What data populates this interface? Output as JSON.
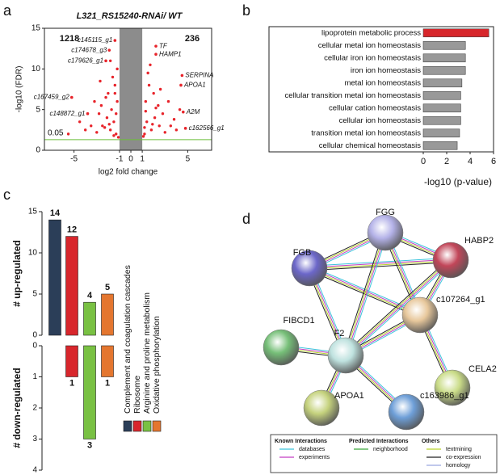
{
  "panel_labels": [
    "a",
    "b",
    "c",
    "d"
  ],
  "chart_data": [
    {
      "type": "volcano",
      "title": "L321_RS15240-RNAi/ WT",
      "xlabel": "log2 fold change",
      "ylabel": "-log10 (FDR)",
      "xlim": [
        -7.6,
        7.1
      ],
      "ylim": [
        0,
        15
      ],
      "xticks": [
        -5,
        -1,
        0,
        1,
        5
      ],
      "yticks": [
        0,
        5,
        10,
        15
      ],
      "band": [
        -1,
        1
      ],
      "threshold": {
        "value": 1.3,
        "label": "0.05"
      },
      "down_count": 1218,
      "up_count": 236,
      "color": "#e8232a",
      "x": [
        -1.3,
        -1.5,
        -1.8,
        -2.1,
        -1.2,
        -2.5,
        -3,
        -1.4,
        -1.7,
        -2.2,
        -2.8,
        -3.5,
        -1.1,
        -1.6,
        -2,
        -4,
        -1.3,
        -2.6,
        -1.9,
        -1.2,
        -3.2,
        -4.5,
        -1.5,
        -2.3,
        -1.8,
        -5.5,
        -1.4,
        -2.7,
        1.2,
        1.4,
        1.8,
        2.1,
        1.3,
        2.5,
        3,
        1.6,
        2.2,
        1.1,
        2.8,
        3.5,
        1.5,
        2,
        4,
        1.3,
        2.4,
        1.9,
        3.3,
        1.7,
        4.3,
        2.6,
        1.2,
        3.8
      ],
      "values": [
        2,
        3.5,
        2.5,
        4,
        6,
        3,
        2.2,
        8,
        5,
        6.5,
        4.5,
        3,
        1.6,
        9,
        7,
        2.5,
        4.5,
        5.5,
        3.2,
        10,
        6,
        3.5,
        1.8,
        2.8,
        11,
        2,
        7,
        8.5,
        2,
        3.5,
        2.5,
        4,
        6,
        3,
        2.2,
        8,
        5.2,
        1.7,
        4.5,
        3,
        9.5,
        7,
        2.5,
        4.8,
        5.5,
        3.2,
        6,
        10.5,
        5,
        7.5,
        2.8,
        3.8
      ],
      "annotations": [
        {
          "text": "c145115_g1",
          "x": -1.4,
          "y": 13.5
        },
        {
          "text": "c174678_g3",
          "x": -1.9,
          "y": 12.3
        },
        {
          "text": "c179626_g1",
          "x": -2.2,
          "y": 11
        },
        {
          "text": "c167459_g2",
          "x": -5.2,
          "y": 6.5
        },
        {
          "text": "c148872_g1",
          "x": -3.8,
          "y": 4.5
        },
        {
          "text": "TF",
          "x": 2.2,
          "y": 12.8
        },
        {
          "text": "HAMP1",
          "x": 2.2,
          "y": 11.8
        },
        {
          "text": "SERPINA",
          "x": 4.5,
          "y": 9.2
        },
        {
          "text": "APOA1",
          "x": 4.4,
          "y": 8
        },
        {
          "text": "A2M",
          "x": 4.6,
          "y": 4.7
        },
        {
          "text": "c162566_g1",
          "x": 4.8,
          "y": 2.7
        }
      ]
    },
    {
      "type": "hbar",
      "xlabel": "-log10 (p-value)",
      "xlim": [
        0,
        6
      ],
      "xticks": [
        0,
        2,
        4,
        6
      ],
      "categories": [
        "lipoprotein metabolic process",
        "cellular metal ion homeostasis",
        "cellular iron ion homeostasis",
        "iron ion homeostasis",
        "metal ion homeostasis",
        "cellular transition metal ion homeostasis",
        "cellular cation homeostasis",
        "cellular ion homeostasis",
        "transition metal ion homeostasis",
        "cellular chemical homeostasis"
      ],
      "values": [
        5.6,
        3.6,
        3.6,
        3.6,
        3.3,
        3.2,
        3.2,
        3.2,
        3.1,
        2.9
      ],
      "colors": [
        "#d7262b",
        "#999999",
        "#999999",
        "#999999",
        "#999999",
        "#999999",
        "#999999",
        "#999999",
        "#999999",
        "#999999"
      ]
    },
    {
      "type": "diverging_bar",
      "categories": [
        "Complement and coagulation cascades",
        "Ribosome",
        "Arginine and proline metabolism",
        "Oxidative phosphorylation"
      ],
      "colors": [
        "#2b3e58",
        "#d8262c",
        "#79c143",
        "#e4762f"
      ],
      "up": {
        "ylabel": "# up-regulated",
        "values": [
          14,
          12,
          4,
          5
        ],
        "ylim": [
          0,
          15
        ],
        "yticks": [
          0,
          5,
          10,
          15
        ]
      },
      "down": {
        "ylabel": "# down-regulated",
        "values": [
          0,
          1,
          3,
          1
        ],
        "ylim": [
          0,
          4
        ],
        "yticks": [
          0,
          1,
          2,
          3,
          4
        ]
      }
    }
  ],
  "network": {
    "nodes": [
      {
        "label": "FGG",
        "color": "#b4b2e8"
      },
      {
        "label": "FGB",
        "color": "#6c67c9"
      },
      {
        "label": "HABP2",
        "color": "#c24659"
      },
      {
        "label": "c107264_g1",
        "color": "#e8c89c"
      },
      {
        "label": "FIBCD1",
        "color": "#76bf78"
      },
      {
        "label": "F2",
        "color": "#bfe2df"
      },
      {
        "label": "CELA2",
        "color": "#cadc88"
      },
      {
        "label": "APOA1",
        "color": "#c5d27d"
      },
      {
        "label": "c163986_g1",
        "color": "#6e9fd8"
      }
    ],
    "edges": [
      [
        0,
        1
      ],
      [
        0,
        2
      ],
      [
        1,
        2
      ],
      [
        0,
        3
      ],
      [
        1,
        3
      ],
      [
        2,
        3
      ],
      [
        0,
        5
      ],
      [
        1,
        5
      ],
      [
        2,
        5
      ],
      [
        3,
        5
      ],
      [
        4,
        5
      ],
      [
        5,
        7
      ],
      [
        5,
        8
      ],
      [
        3,
        6
      ]
    ],
    "legend": [
      {
        "title": "Known Interactions",
        "items": [
          {
            "name": "databases",
            "color": "#3cc4dc"
          },
          {
            "name": "experiments",
            "color": "#c33fc3"
          }
        ]
      },
      {
        "title": "Predicted Interactions",
        "items": [
          {
            "name": "neighborhood",
            "color": "#3aa63a"
          }
        ]
      },
      {
        "title": "Others",
        "items": [
          {
            "name": "textmining",
            "color": "#b9d42a"
          },
          {
            "name": "co-expression",
            "color": "#222222"
          },
          {
            "name": "homology",
            "color": "#9aa6e0"
          }
        ]
      }
    ]
  }
}
